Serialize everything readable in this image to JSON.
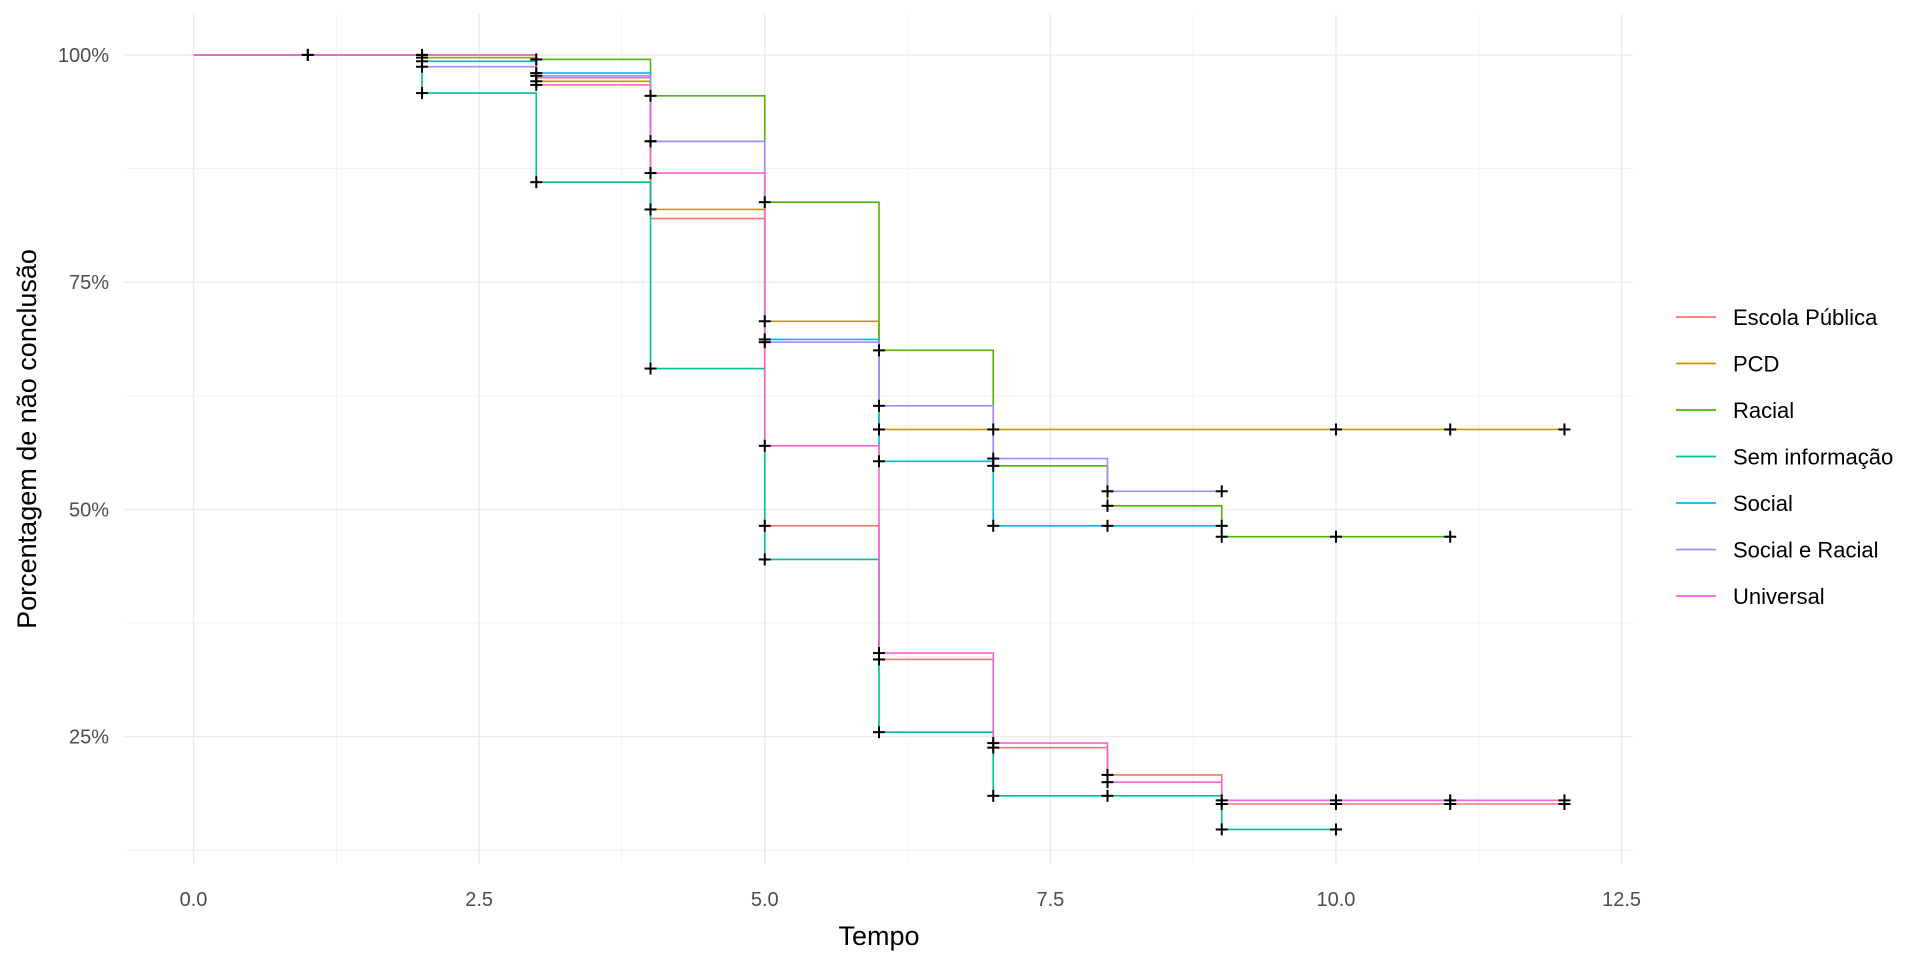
{
  "chart_data": {
    "type": "line",
    "step": true,
    "xlabel": "Tempo",
    "ylabel": "Porcentagem de não conclusão",
    "xlim": [
      -0.6,
      12.6
    ],
    "ylim": [
      0.11,
      1.045
    ],
    "x_ticks": [
      0,
      2.5,
      5,
      7.5,
      10,
      12.5
    ],
    "x_tick_labels": [
      "0.0",
      "2.5",
      "5.0",
      "7.5",
      "10.0",
      "12.5"
    ],
    "y_ticks": [
      0.25,
      0.5,
      0.75,
      1.0
    ],
    "y_tick_labels": [
      "25%",
      "50%",
      "75%",
      "100%"
    ],
    "grid": true,
    "legend_position": "right",
    "series": [
      {
        "name": "Escola Pública",
        "color": "#F8766D",
        "steps": [
          [
            0,
            1.0
          ],
          [
            2,
            0.997
          ],
          [
            3,
            0.975
          ],
          [
            4,
            0.82
          ],
          [
            5,
            0.482
          ],
          [
            6,
            0.335
          ],
          [
            7,
            0.238
          ],
          [
            8,
            0.208
          ],
          [
            9,
            0.176
          ],
          [
            12,
            0.176
          ]
        ],
        "censor_x": [
          5,
          6,
          7,
          8,
          9,
          10,
          11,
          12
        ]
      },
      {
        "name": "PCD",
        "color": "#C49A00",
        "steps": [
          [
            0,
            1.0
          ],
          [
            2,
            0.997
          ],
          [
            3,
            0.971
          ],
          [
            4,
            0.83
          ],
          [
            5,
            0.707
          ],
          [
            6,
            0.588
          ],
          [
            12,
            0.588
          ]
        ],
        "censor_x": [
          1,
          2,
          3,
          4,
          5,
          6,
          7,
          10,
          11,
          12
        ]
      },
      {
        "name": "Racial",
        "color": "#53B400",
        "steps": [
          [
            0,
            1.0
          ],
          [
            3,
            0.995
          ],
          [
            4,
            0.955
          ],
          [
            5,
            0.838
          ],
          [
            6,
            0.675
          ],
          [
            7,
            0.548
          ],
          [
            8,
            0.504
          ],
          [
            9,
            0.47
          ],
          [
            11,
            0.47
          ]
        ],
        "censor_x": [
          2,
          3,
          4,
          5,
          6,
          7,
          8,
          9,
          10,
          11
        ]
      },
      {
        "name": "Sem informação",
        "color": "#00C094",
        "steps": [
          [
            0,
            1.0
          ],
          [
            2,
            0.958
          ],
          [
            3,
            0.86
          ],
          [
            4,
            0.655
          ],
          [
            5,
            0.445
          ],
          [
            6,
            0.255
          ],
          [
            7,
            0.185
          ],
          [
            9,
            0.148
          ],
          [
            10,
            0.148
          ]
        ],
        "censor_x": [
          2,
          3,
          4,
          5,
          6,
          7,
          8,
          9,
          10
        ]
      },
      {
        "name": "Social",
        "color": "#00B6EB",
        "steps": [
          [
            0,
            1.0
          ],
          [
            2,
            0.993
          ],
          [
            3,
            0.98
          ],
          [
            4,
            0.905
          ],
          [
            5,
            0.687
          ],
          [
            6,
            0.553
          ],
          [
            7,
            0.482
          ],
          [
            9,
            0.482
          ]
        ],
        "censor_x": [
          2,
          3,
          4,
          5,
          6,
          7,
          8,
          9
        ]
      },
      {
        "name": "Social e Racial",
        "color": "#A58AFF",
        "steps": [
          [
            0,
            1.0
          ],
          [
            2,
            0.987
          ],
          [
            3,
            0.977
          ],
          [
            4,
            0.905
          ],
          [
            5,
            0.684
          ],
          [
            6,
            0.614
          ],
          [
            7,
            0.556
          ],
          [
            8,
            0.52
          ],
          [
            9,
            0.52
          ]
        ],
        "censor_x": [
          2,
          3,
          4,
          5,
          6,
          7,
          8,
          9
        ]
      },
      {
        "name": "Universal",
        "color": "#FB61D7",
        "steps": [
          [
            0,
            1.0
          ],
          [
            3,
            0.967
          ],
          [
            4,
            0.87
          ],
          [
            5,
            0.57
          ],
          [
            6,
            0.342
          ],
          [
            7,
            0.243
          ],
          [
            8,
            0.2
          ],
          [
            9,
            0.18
          ],
          [
            12,
            0.18
          ]
        ],
        "censor_x": [
          1,
          2,
          3,
          4,
          5,
          6,
          7,
          8,
          9,
          10,
          11,
          12
        ]
      }
    ]
  }
}
